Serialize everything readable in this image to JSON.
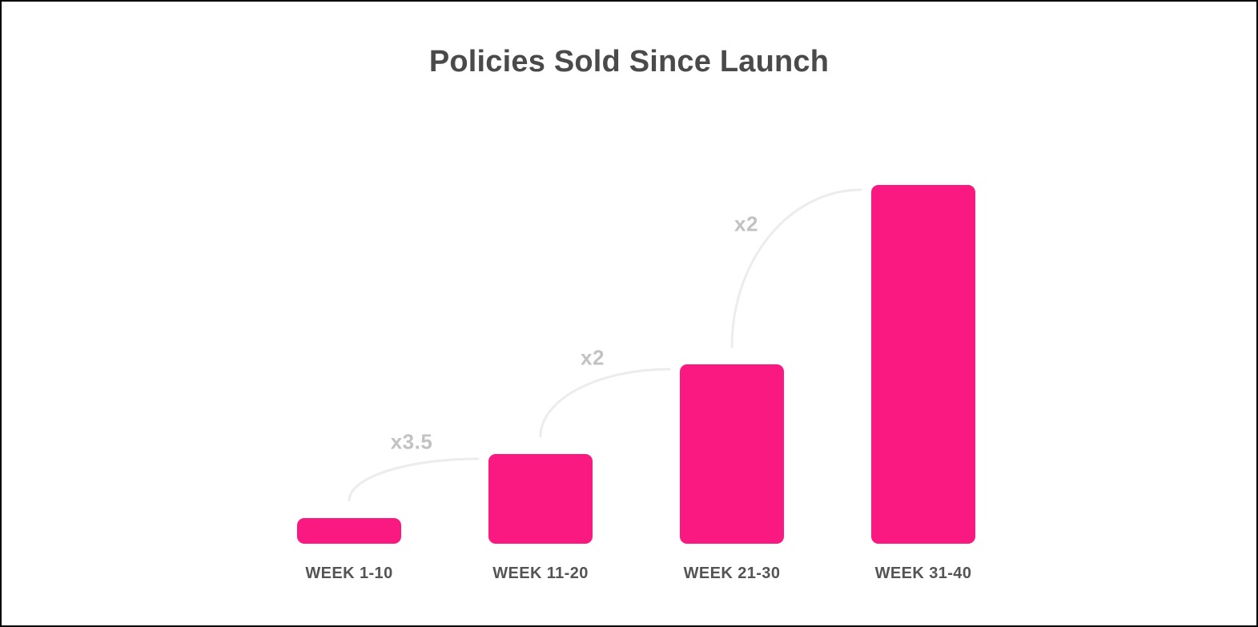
{
  "colors": {
    "background": "#ffffff",
    "frame_border": "#000000",
    "bar": "#fa1980",
    "title_text": "#4a4a4a",
    "bar_label_text": "#545454",
    "annotation_text": "#c2c2c2",
    "arc": "#ececec"
  },
  "chart_data": {
    "type": "bar",
    "title": "Policies Sold Since Launch",
    "categories": [
      "WEEK 1-10",
      "WEEK 11-20",
      "WEEK 21-30",
      "WEEK 31-40"
    ],
    "values": [
      1,
      3.5,
      7,
      14
    ],
    "xlabel": "",
    "ylabel": "",
    "grid": false,
    "axes_shown": false,
    "value_axis_hidden": true,
    "bar_color": "#fa1980",
    "annotations": [
      {
        "label": "x3.5",
        "from": "WEEK 1-10",
        "to": "WEEK 11-20"
      },
      {
        "label": "x2",
        "from": "WEEK 11-20",
        "to": "WEEK 21-30"
      },
      {
        "label": "x2",
        "from": "WEEK 21-30",
        "to": "WEEK 31-40"
      }
    ]
  }
}
